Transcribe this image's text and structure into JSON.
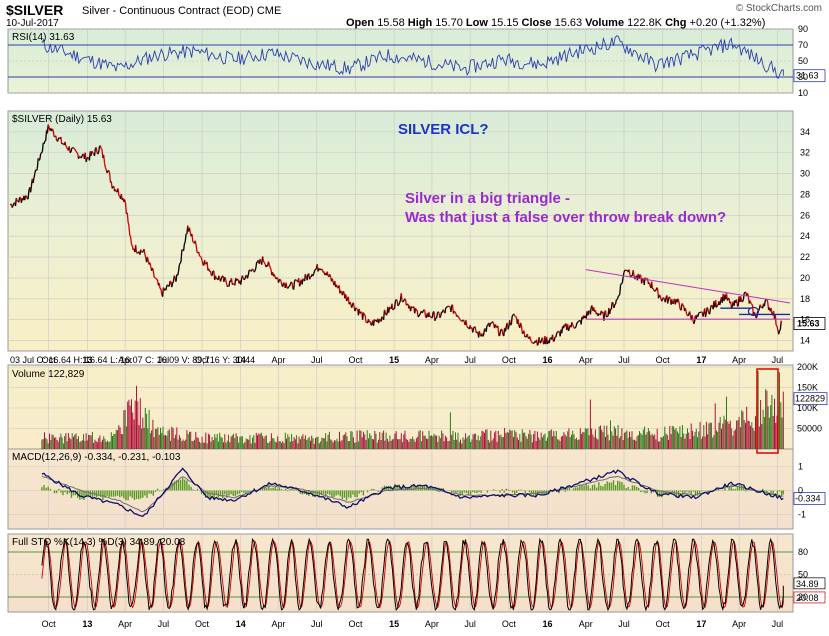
{
  "header": {
    "symbol": "$SILVER",
    "subtitle": "Silver - Continuous Contract (EOD)  CME",
    "date": "10-Jul-2017",
    "open_label": "Open",
    "open": "15.58",
    "high_label": "High",
    "high": "15.70",
    "low_label": "Low",
    "low": "15.15",
    "close_label": "Close",
    "close": "15.63",
    "volume_label": "Volume",
    "volume": "122.8K",
    "chg_label": "Chg",
    "chg": "+0.20 (+1.32%)",
    "brand": "© StockCharts.com"
  },
  "annotations": {
    "title": "SILVER ICL?",
    "line1": "Silver in a big triangle -",
    "line2": "Was that just a  false over throw break down?"
  },
  "colors": {
    "price_up": "#000000",
    "price_down": "#cc0000",
    "rsi": "#2b3fb0",
    "macd": "#10106a",
    "signal": "#6d6d6d",
    "hist": "#5a9a20",
    "trend": "#c030c0",
    "stoch_k": "#000000",
    "stoch_d": "#cc0000",
    "vol_down": "#b0103a",
    "vol_up": "#2a7a1a",
    "box": "#dd0000"
  },
  "chart_data": [
    {
      "type": "line",
      "title": "RSI(14) 31.63",
      "panel": "rsi",
      "ylim": [
        10,
        90
      ],
      "yticks": [
        10,
        30,
        50,
        70,
        90
      ],
      "ytick_labels": [
        "10",
        "30",
        "50",
        "70",
        "90"
      ],
      "reference_lines": [
        30,
        70
      ],
      "last_value": "31.63",
      "x": [
        "2012-09",
        "2012-12",
        "2013-03",
        "2013-06",
        "2013-09",
        "2013-12",
        "2014-03",
        "2014-06",
        "2014-09",
        "2014-12",
        "2015-03",
        "2015-06",
        "2015-09",
        "2015-12",
        "2016-03",
        "2016-06",
        "2016-09",
        "2016-12",
        "2017-03",
        "2017-07"
      ],
      "series": [
        {
          "values": [
            70,
            55,
            40,
            58,
            62,
            52,
            60,
            48,
            40,
            57,
            50,
            40,
            52,
            46,
            62,
            74,
            45,
            58,
            72,
            31.6
          ]
        }
      ]
    },
    {
      "type": "line",
      "title": "$SILVER (Daily) 15.63",
      "panel": "price",
      "ylim": [
        13,
        36
      ],
      "yticks": [
        14,
        16,
        18,
        20,
        22,
        24,
        26,
        28,
        30,
        32,
        34
      ],
      "ytick_labels": [
        "14",
        "16",
        "18",
        "20",
        "22",
        "24",
        "26",
        "28",
        "30",
        "32",
        "34"
      ],
      "last_value": "15.63",
      "xtick_labels": [
        "Oct",
        "13",
        "Apr",
        "Jul",
        "Oct",
        "14",
        "Apr",
        "Jul",
        "Oct",
        "15",
        "Apr",
        "Jul",
        "Oct",
        "16",
        "Apr",
        "Jul",
        "Oct",
        "17",
        "Apr",
        "Jul"
      ],
      "info_line": "03 Jul O: 16.64  H: 16.64  L: 16.07  C: 16.09  V: 89,716  Y: 30.44",
      "x": [
        "2012-07-02",
        "2012-08-15",
        "2012-10-01",
        "2012-11-01",
        "2012-12-01",
        "2013-01-02",
        "2013-02-01",
        "2013-03-01",
        "2013-04-01",
        "2013-04-16",
        "2013-05-15",
        "2013-06-27",
        "2013-08-01",
        "2013-08-28",
        "2013-10-01",
        "2013-11-01",
        "2013-12-02",
        "2014-01-02",
        "2014-02-24",
        "2014-04-01",
        "2014-05-01",
        "2014-06-02",
        "2014-07-10",
        "2014-08-01",
        "2014-09-02",
        "2014-10-01",
        "2014-11-05",
        "2014-12-01",
        "2015-01-21",
        "2015-02-18",
        "2015-03-16",
        "2015-04-15",
        "2015-05-15",
        "2015-06-15",
        "2015-07-24",
        "2015-08-20",
        "2015-09-15",
        "2015-10-15",
        "2015-11-15",
        "2015-12-15",
        "2016-01-15",
        "2016-02-15",
        "2016-03-15",
        "2016-04-15",
        "2016-05-15",
        "2016-06-15",
        "2016-07-05",
        "2016-08-01",
        "2016-09-01",
        "2016-10-01",
        "2016-11-01",
        "2016-12-15",
        "2017-01-15",
        "2017-02-27",
        "2017-03-15",
        "2017-04-18",
        "2017-05-09",
        "2017-06-01",
        "2017-06-20",
        "2017-07-06",
        "2017-07-10"
      ],
      "series": [
        {
          "name": "$SILVER (Daily)",
          "values": [
            27,
            28,
            34.5,
            33,
            32,
            31.5,
            32.5,
            29,
            27.5,
            23,
            22.5,
            18.5,
            20,
            24.8,
            21.8,
            20.2,
            19.5,
            19.7,
            21.8,
            19.8,
            19.2,
            19.9,
            21.2,
            20.0,
            18.5,
            17.2,
            15.5,
            16.2,
            18.2,
            16.8,
            16.5,
            16.3,
            17.2,
            16.0,
            14.5,
            15.6,
            14.6,
            16.4,
            14.2,
            13.9,
            14.2,
            15.3,
            15.6,
            17.0,
            16.3,
            17.9,
            21.0,
            20.0,
            19.5,
            18.0,
            17.8,
            16.0,
            16.8,
            18.3,
            17.2,
            18.5,
            16.3,
            17.8,
            16.8,
            14.8,
            15.63
          ]
        }
      ],
      "trendlines": [
        {
          "from": [
            "2016-04-01",
            20.8
          ],
          "to": [
            "2017-07-31",
            17.6
          ]
        },
        {
          "from": [
            "2016-04-01",
            16.05
          ],
          "to": [
            "2017-07-31",
            16.05
          ]
        },
        {
          "from": [
            "2017-02-15",
            17.1
          ],
          "to": [
            "2017-05-01",
            17.1
          ]
        },
        {
          "from": [
            "2017-04-01",
            16.5
          ],
          "to": [
            "2017-07-31",
            16.5
          ]
        }
      ]
    },
    {
      "type": "bar",
      "title": "Volume 122,829",
      "panel": "volume",
      "ylim": [
        0,
        200
      ],
      "yticks": [
        50,
        100,
        150,
        200
      ],
      "ytick_labels": [
        "50000",
        "100K",
        "150K",
        "200K"
      ],
      "last_value": "122829",
      "x": [
        "2012-09",
        "2012-12",
        "2013-03",
        "2013-04",
        "2013-06",
        "2013-09",
        "2013-12",
        "2014-03",
        "2014-06",
        "2014-09",
        "2014-12",
        "2015-03",
        "2015-06",
        "2015-09",
        "2015-12",
        "2016-03",
        "2016-06",
        "2016-09",
        "2016-12",
        "2017-03",
        "2017-05",
        "2017-07"
      ],
      "series": [
        {
          "values": [
            30,
            28,
            35,
            140,
            45,
            32,
            28,
            30,
            26,
            34,
            32,
            36,
            30,
            38,
            34,
            44,
            42,
            38,
            45,
            70,
            85,
            155
          ]
        }
      ]
    },
    {
      "type": "line",
      "title": "MACD(12,26,9) -0.334, -0.231, -0.103",
      "panel": "macd",
      "ylim": [
        -1.6,
        1.6
      ],
      "yticks": [
        -1,
        0,
        1
      ],
      "ytick_labels": [
        "-1",
        "0",
        "1"
      ],
      "last_value": "-0.334",
      "x": [
        "2012-09",
        "2012-12",
        "2013-03",
        "2013-05",
        "2013-08",
        "2013-10",
        "2013-12",
        "2014-03",
        "2014-06",
        "2014-09",
        "2014-12",
        "2015-03",
        "2015-06",
        "2015-09",
        "2015-12",
        "2016-03",
        "2016-06",
        "2016-09",
        "2016-12",
        "2017-03",
        "2017-07"
      ],
      "series": [
        {
          "name": "MACD",
          "values": [
            0.7,
            -0.2,
            -0.6,
            -1.1,
            0.9,
            -0.3,
            -0.4,
            0.3,
            -0.1,
            -0.7,
            0.1,
            0.2,
            -0.3,
            -0.2,
            -0.2,
            0.3,
            0.8,
            -0.1,
            -0.3,
            0.3,
            -0.33
          ]
        },
        {
          "name": "Signal",
          "values": [
            0.6,
            0.0,
            -0.4,
            -0.9,
            0.6,
            -0.1,
            -0.3,
            0.2,
            0.0,
            -0.5,
            0.0,
            0.1,
            -0.2,
            -0.2,
            -0.1,
            0.2,
            0.6,
            0.0,
            -0.2,
            0.2,
            -0.23
          ]
        }
      ]
    },
    {
      "type": "line",
      "title": "Full STO %K(14,3) %D(3) 34.89, 20.08",
      "panel": "stochastic",
      "ylim": [
        0,
        100
      ],
      "yticks": [
        20,
        50,
        80
      ],
      "ytick_labels": [
        "20",
        "50",
        "80"
      ],
      "reference_lines": [
        20,
        80
      ],
      "last_values": [
        "34.89",
        "20.08"
      ],
      "x": [
        "2012-09",
        "2012-12",
        "2013-03",
        "2013-06",
        "2013-09",
        "2013-12",
        "2014-03",
        "2014-06",
        "2014-09",
        "2014-12",
        "2015-03",
        "2015-06",
        "2015-09",
        "2015-12",
        "2016-03",
        "2016-06",
        "2016-09",
        "2016-12",
        "2017-03",
        "2017-07"
      ],
      "series": [
        {
          "name": "%K",
          "values": [
            90,
            15,
            85,
            10,
            92,
            20,
            88,
            25,
            10,
            80,
            20,
            85,
            15,
            90,
            95,
            92,
            12,
            60,
            85,
            34.9
          ]
        },
        {
          "name": "%D",
          "values": [
            88,
            18,
            80,
            15,
            88,
            25,
            85,
            30,
            12,
            75,
            25,
            80,
            20,
            85,
            92,
            90,
            15,
            55,
            80,
            20.1
          ]
        }
      ]
    }
  ]
}
